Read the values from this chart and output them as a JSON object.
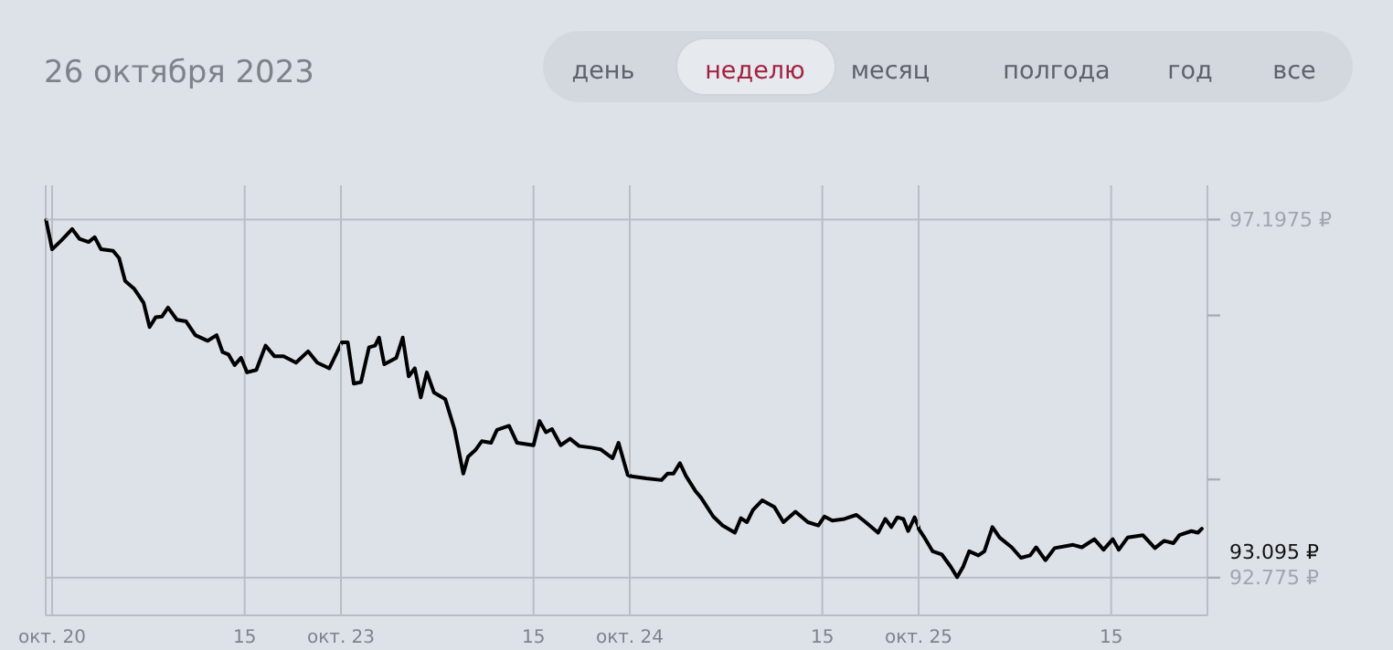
{
  "chart_data": [
    {
      "type": "line",
      "title": "26 октября 2023",
      "annotations": [
        "день",
        "неделю",
        "месяц",
        "полгода",
        "год",
        "все"
      ],
      "x": [
        "2023-10-20T06:45",
        "2023-10-20T07:00",
        "2023-10-20T07:23",
        "2023-10-20T07:50",
        "2023-10-20T08:08",
        "2023-10-20T08:31",
        "2023-10-20T08:46",
        "2023-10-20T09:02",
        "2023-10-20T09:32",
        "2023-10-20T09:47",
        "2023-10-20T10:02",
        "2023-10-20T10:25",
        "2023-10-20T10:48",
        "2023-10-20T11:03",
        "2023-10-20T11:18",
        "2023-10-20T11:34",
        "2023-10-20T11:49",
        "2023-10-20T12:11",
        "2023-10-20T12:34",
        "2023-10-20T12:57",
        "2023-10-20T13:28",
        "2023-10-20T13:50",
        "2023-10-20T14:05",
        "2023-10-20T14:20",
        "2023-10-20T14:35",
        "2023-10-20T14:51",
        "2023-10-20T15:06",
        "2023-10-20T15:29",
        "2023-10-20T15:52",
        "2023-10-20T16:14",
        "2023-10-20T16:37",
        "2023-10-20T17:08",
        "2023-10-20T17:38",
        "2023-10-20T18:01",
        "2023-10-20T18:31",
        "2023-10-20T19:00"
      ],
      "series": [
        {
          "color": "#000000",
          "values": [
            97.19,
            96.83,
            96.94,
            97.08,
            96.96,
            96.92,
            96.98,
            96.83,
            96.81,
            96.72,
            96.44,
            96.34,
            96.17,
            95.87,
            95.99,
            96.0,
            96.11,
            95.96,
            95.94,
            95.77,
            95.7,
            95.77,
            95.56,
            95.53,
            95.4,
            95.49,
            95.31,
            95.34,
            95.64,
            95.51,
            95.51,
            95.43,
            95.57,
            95.43,
            95.36,
            95.66
          ]
        }
      ],
      "xlim": [
        "2023-10-20T06:44",
        "2023-10-20T19:00"
      ],
      "xticks": [
        {
          "value": "2023-10-20T07:00",
          "label": "окт. 20"
        },
        {
          "value": "2023-10-20T15:00",
          "label": "15"
        }
      ],
      "ylim": [
        92.31,
        97.62
      ],
      "grid": "x",
      "tick_labels": "x"
    },
    {
      "type": "line",
      "x": [
        "2023-10-23T07:02",
        "2023-10-23T07:17",
        "2023-10-23T07:32",
        "2023-10-23T07:50",
        "2023-10-23T08:10",
        "2023-10-23T08:25",
        "2023-10-23T08:35",
        "2023-10-23T08:48",
        "2023-10-23T09:18",
        "2023-10-23T09:34",
        "2023-10-23T09:49",
        "2023-10-23T10:04",
        "2023-10-23T10:19",
        "2023-10-23T10:34",
        "2023-10-23T10:52",
        "2023-10-23T11:20",
        "2023-10-23T11:43",
        "2023-10-23T12:05",
        "2023-10-23T12:17",
        "2023-10-23T12:35",
        "2023-10-23T12:51",
        "2023-10-23T13:14",
        "2023-10-23T13:29",
        "2023-10-23T13:59",
        "2023-10-23T14:19",
        "2023-10-23T15:00",
        "2023-10-23T15:15",
        "2023-10-23T15:31",
        "2023-10-23T15:46",
        "2023-10-23T16:08",
        "2023-10-23T16:31",
        "2023-10-23T16:54",
        "2023-10-23T17:25",
        "2023-10-23T17:47",
        "2023-10-23T18:17",
        "2023-10-23T18:32",
        "2023-10-23T18:55",
        "2023-10-23T19:00"
      ],
      "series": [
        {
          "color": "#000000",
          "values": [
            95.68,
            95.68,
            95.17,
            95.19,
            95.62,
            95.64,
            95.74,
            95.41,
            95.49,
            95.74,
            95.26,
            95.36,
            95.0,
            95.31,
            95.06,
            94.98,
            94.61,
            94.06,
            94.27,
            94.35,
            94.46,
            94.44,
            94.6,
            94.65,
            94.44,
            94.41,
            94.71,
            94.57,
            94.61,
            94.41,
            94.49,
            94.4,
            94.38,
            94.36,
            94.25,
            94.44,
            94.04,
            94.04
          ]
        }
      ],
      "xlim": [
        "2023-10-23T07:00",
        "2023-10-23T19:00"
      ],
      "xticks": [
        {
          "value": "2023-10-23T07:00",
          "label": "окт. 23"
        },
        {
          "value": "2023-10-23T15:00",
          "label": "15"
        }
      ],
      "ylim": [
        92.31,
        97.62
      ],
      "grid": "x",
      "tick_labels": "x"
    },
    {
      "type": "line",
      "x": [
        "2023-10-24T07:00",
        "2023-10-24T07:41",
        "2023-10-24T08:19",
        "2023-10-24T08:34",
        "2023-10-24T08:49",
        "2023-10-24T09:05",
        "2023-10-24T09:20",
        "2023-10-24T09:43",
        "2023-10-24T09:58",
        "2023-10-24T10:28",
        "2023-10-24T10:51",
        "2023-10-24T11:22",
        "2023-10-24T11:37",
        "2023-10-24T11:52",
        "2023-10-24T12:07",
        "2023-10-24T12:30",
        "2023-10-24T13:00",
        "2023-10-24T13:23",
        "2023-10-24T13:53",
        "2023-10-24T14:24",
        "2023-10-24T14:50",
        "2023-10-24T15:05",
        "2023-10-24T15:25",
        "2023-10-24T15:55",
        "2023-10-24T16:25",
        "2023-10-24T16:48",
        "2023-10-24T17:19",
        "2023-10-24T17:37",
        "2023-10-24T17:52",
        "2023-10-24T18:07",
        "2023-10-24T18:22",
        "2023-10-24T18:34",
        "2023-10-24T18:50",
        "2023-10-24T19:00"
      ],
      "series": [
        {
          "color": "#000000",
          "values": [
            94.03,
            94.0,
            93.98,
            94.06,
            94.06,
            94.19,
            94.03,
            93.85,
            93.76,
            93.53,
            93.42,
            93.33,
            93.51,
            93.46,
            93.61,
            93.73,
            93.65,
            93.46,
            93.59,
            93.46,
            93.42,
            93.53,
            93.48,
            93.5,
            93.55,
            93.46,
            93.33,
            93.5,
            93.4,
            93.52,
            93.5,
            93.35,
            93.52,
            93.4
          ]
        }
      ],
      "xlim": [
        "2023-10-24T07:00",
        "2023-10-24T19:00"
      ],
      "xticks": [
        {
          "value": "2023-10-24T07:00",
          "label": "окт. 24"
        },
        {
          "value": "2023-10-24T15:00",
          "label": "15"
        }
      ],
      "ylim": [
        92.31,
        97.62
      ],
      "grid": "x",
      "tick_labels": "x"
    },
    {
      "type": "line",
      "annotations": [
        "93.095 ₽"
      ],
      "x": [
        "2023-10-25T07:00",
        "2023-10-25T07:12",
        "2023-10-25T07:35",
        "2023-10-25T07:58",
        "2023-10-25T08:20",
        "2023-10-25T08:36",
        "2023-10-25T08:51",
        "2023-10-25T09:06",
        "2023-10-25T09:29",
        "2023-10-25T09:44",
        "2023-10-25T10:04",
        "2023-10-25T10:22",
        "2023-10-25T10:52",
        "2023-10-25T11:15",
        "2023-10-25T11:38",
        "2023-10-25T11:53",
        "2023-10-25T12:16",
        "2023-10-25T12:39",
        "2023-10-25T13:25",
        "2023-10-25T13:47",
        "2023-10-25T14:18",
        "2023-10-25T14:41",
        "2023-10-25T15:04",
        "2023-10-25T15:19",
        "2023-10-25T15:41",
        "2023-10-25T16:19",
        "2023-10-25T16:49",
        "2023-10-25T17:12",
        "2023-10-25T17:35",
        "2023-10-25T17:50",
        "2023-10-25T18:20",
        "2023-10-25T18:36",
        "2023-10-25T18:46"
      ],
      "series": [
        {
          "color": "#000000",
          "values": [
            93.38,
            93.29,
            93.1,
            93.06,
            92.91,
            92.78,
            92.91,
            93.1,
            93.05,
            93.1,
            93.4,
            93.27,
            93.15,
            93.02,
            93.05,
            93.15,
            92.99,
            93.14,
            93.18,
            93.15,
            93.25,
            93.12,
            93.25,
            93.12,
            93.27,
            93.3,
            93.14,
            93.23,
            93.2,
            93.3,
            93.35,
            93.33,
            93.38
          ]
        }
      ],
      "xlim": [
        "2023-10-25T07:00",
        "2023-10-25T19:00"
      ],
      "xticks": [
        {
          "value": "2023-10-25T07:00",
          "label": "окт. 25"
        },
        {
          "value": "2023-10-25T15:00",
          "label": "15"
        }
      ],
      "ylim": [
        92.31,
        97.62
      ],
      "yticks": [
        {
          "value": 97.1975,
          "label": "97.1975 ₽"
        },
        {
          "value": 96.013,
          "label": null
        },
        {
          "value": 93.988,
          "label": null
        },
        {
          "value": 92.775,
          "label": "92.775 ₽"
        }
      ],
      "grid": true
    }
  ]
}
